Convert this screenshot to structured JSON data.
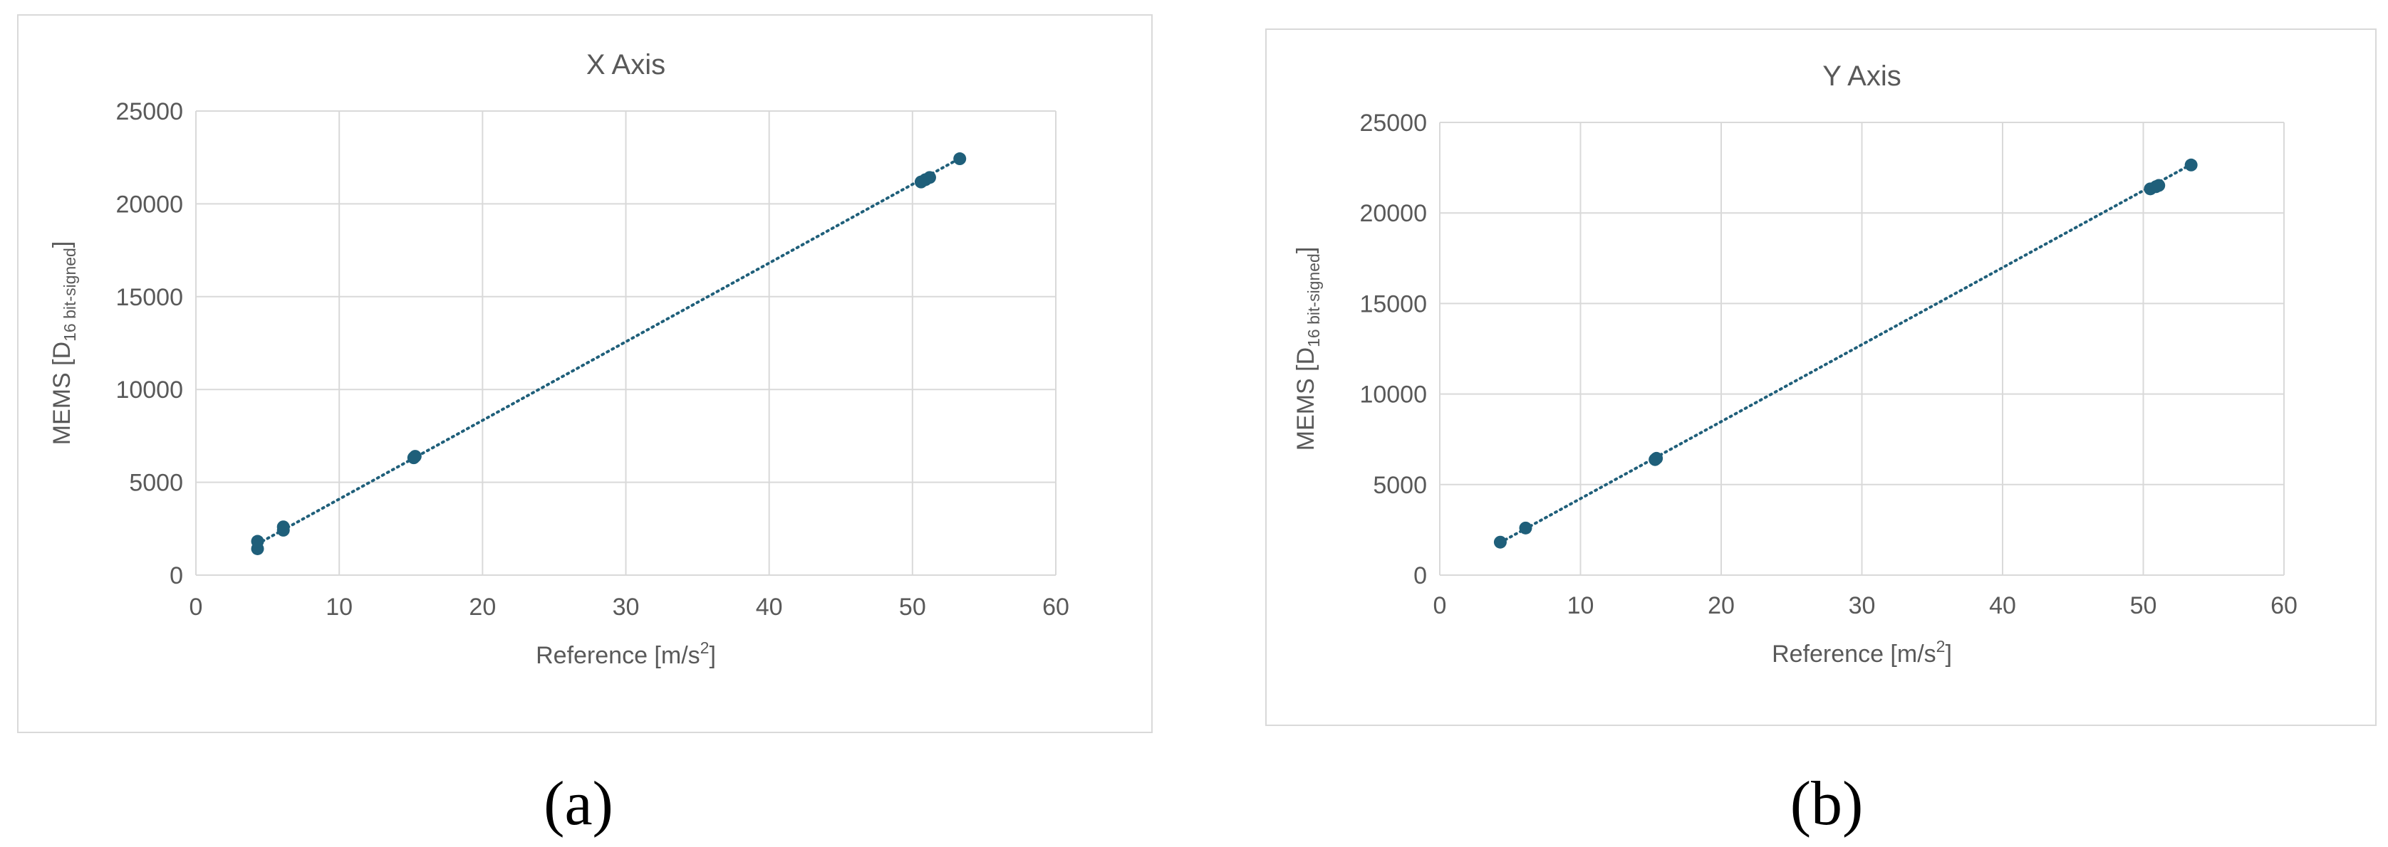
{
  "colors": {
    "marker": "#1f5f7a",
    "trendline": "#1f5f7a",
    "grid": "#d9d9d9",
    "text": "#595959",
    "frame": "#d9d9d9"
  },
  "chart_data": [
    {
      "type": "scatter",
      "title": "X Axis",
      "sublabel": "(a)",
      "xlabel": "Reference [m/s2]",
      "ylabel": "MEMS [D16 bit-signed]",
      "xlabel_parts": {
        "main": "Reference [m/s",
        "sup": "2",
        "end": "]"
      },
      "ylabel_parts": {
        "main": "MEMS [D",
        "sub": "16 bit-signed",
        "end": "]"
      },
      "xlim": [
        0,
        60
      ],
      "ylim": [
        0,
        25000
      ],
      "x_ticks": [
        0,
        10,
        20,
        30,
        40,
        50,
        60
      ],
      "y_ticks": [
        0,
        5000,
        10000,
        15000,
        20000,
        25000
      ],
      "x_tick_labels": [
        "0",
        "10",
        "20",
        "30",
        "40",
        "50",
        "60"
      ],
      "y_tick_labels": [
        "0",
        "5000",
        "10000",
        "15000",
        "20000",
        "25000"
      ],
      "grid": true,
      "trendline": {
        "style": "dotted",
        "from": [
          4.3,
          1680
        ],
        "to": [
          53.3,
          22450
        ]
      },
      "points": [
        {
          "x": 4.3,
          "y": 1420
        },
        {
          "x": 4.3,
          "y": 1820
        },
        {
          "x": 6.1,
          "y": 2420
        },
        {
          "x": 6.1,
          "y": 2600
        },
        {
          "x": 15.2,
          "y": 6320
        },
        {
          "x": 15.3,
          "y": 6400
        },
        {
          "x": 50.6,
          "y": 21180
        },
        {
          "x": 50.9,
          "y": 21300
        },
        {
          "x": 51.2,
          "y": 21420
        },
        {
          "x": 53.3,
          "y": 22430
        }
      ]
    },
    {
      "type": "scatter",
      "title": "Y Axis",
      "sublabel": "(b)",
      "xlabel": "Reference [m/s2]",
      "ylabel": "MEMS [D16 bit-signed]",
      "xlabel_parts": {
        "main": "Reference [m/s",
        "sup": "2",
        "end": "]"
      },
      "ylabel_parts": {
        "main": "MEMS [D",
        "sub": "16 bit-signed",
        "end": "]"
      },
      "xlim": [
        0,
        60
      ],
      "ylim": [
        0,
        25000
      ],
      "x_ticks": [
        0,
        10,
        20,
        30,
        40,
        50,
        60
      ],
      "y_ticks": [
        0,
        5000,
        10000,
        15000,
        20000,
        25000
      ],
      "x_tick_labels": [
        "0",
        "10",
        "20",
        "30",
        "40",
        "50",
        "60"
      ],
      "y_tick_labels": [
        "0",
        "5000",
        "10000",
        "15000",
        "20000",
        "25000"
      ],
      "grid": true,
      "trendline": {
        "style": "dotted",
        "from": [
          4.3,
          1800
        ],
        "to": [
          53.4,
          22680
        ]
      },
      "points": [
        {
          "x": 4.3,
          "y": 1820
        },
        {
          "x": 6.1,
          "y": 2600
        },
        {
          "x": 15.3,
          "y": 6380
        },
        {
          "x": 15.4,
          "y": 6450
        },
        {
          "x": 50.5,
          "y": 21330
        },
        {
          "x": 50.9,
          "y": 21450
        },
        {
          "x": 51.1,
          "y": 21520
        },
        {
          "x": 53.4,
          "y": 22650
        }
      ]
    }
  ]
}
